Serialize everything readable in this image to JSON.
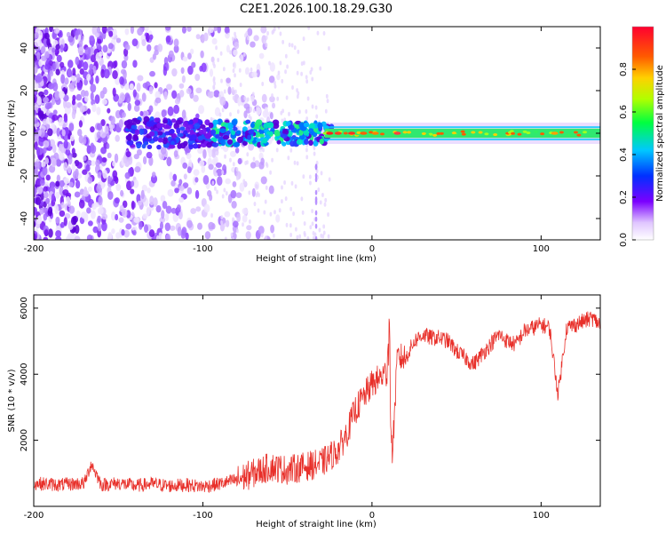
{
  "title": "C2E1.2026.100.18.29.G30",
  "chart_data": [
    {
      "type": "heatmap",
      "name": "spectrogram",
      "xlabel": "Height of straight line (km)",
      "ylabel": "Frequency (Hz)",
      "xlim": [
        -200,
        135
      ],
      "ylim": [
        -50,
        50
      ],
      "xticks": [
        -200,
        -100,
        0,
        100
      ],
      "yticks": [
        -40,
        -20,
        0,
        20,
        40
      ],
      "colorbar": {
        "label": "Normalized spectral amplitude",
        "range": [
          0.0,
          1.0
        ],
        "ticks": [
          0.0,
          0.2,
          0.4,
          0.6,
          0.8
        ]
      },
      "ridge": {
        "frequency_hz": 0,
        "description_regions": [
          {
            "x_from": -200,
            "x_to": -95,
            "level": "diffuse purple noise"
          },
          {
            "x_from": -95,
            "x_to": -25,
            "level": "blue-green band"
          },
          {
            "x_from": -25,
            "x_to": 135,
            "level": "strong narrow green band"
          }
        ]
      }
    },
    {
      "type": "line",
      "name": "snr",
      "xlabel": "Height of straight line (km)",
      "ylabel": "SNR (10 * v/v)",
      "xlim": [
        -200,
        135
      ],
      "ylim": [
        0,
        6400
      ],
      "xticks": [
        -200,
        -100,
        0,
        100
      ],
      "yticks": [
        2000,
        4000,
        6000
      ],
      "color": "#e8302a",
      "series": [
        {
          "name": "SNR",
          "x": [
            -200,
            -185,
            -170,
            -166,
            -160,
            -150,
            -140,
            -130,
            -120,
            -110,
            -100,
            -90,
            -80,
            -70,
            -60,
            -50,
            -40,
            -30,
            -20,
            -15,
            -10,
            -5,
            0,
            5,
            10,
            12,
            15,
            20,
            25,
            30,
            35,
            40,
            45,
            50,
            55,
            60,
            65,
            70,
            75,
            80,
            85,
            90,
            95,
            100,
            105,
            110,
            115,
            120,
            125,
            130,
            135
          ],
          "y": [
            700,
            650,
            700,
            1300,
            650,
            700,
            620,
            680,
            620,
            650,
            600,
            680,
            800,
            1000,
            1200,
            1100,
            1200,
            1300,
            1700,
            2200,
            2900,
            3300,
            3700,
            3900,
            4100,
            1500,
            4500,
            4500,
            5000,
            5200,
            5100,
            5100,
            5000,
            4700,
            4500,
            4300,
            4600,
            4900,
            5200,
            5000,
            4900,
            5300,
            5400,
            5500,
            5400,
            3400,
            5400,
            5500,
            5600,
            5700,
            5500
          ]
        }
      ]
    }
  ]
}
